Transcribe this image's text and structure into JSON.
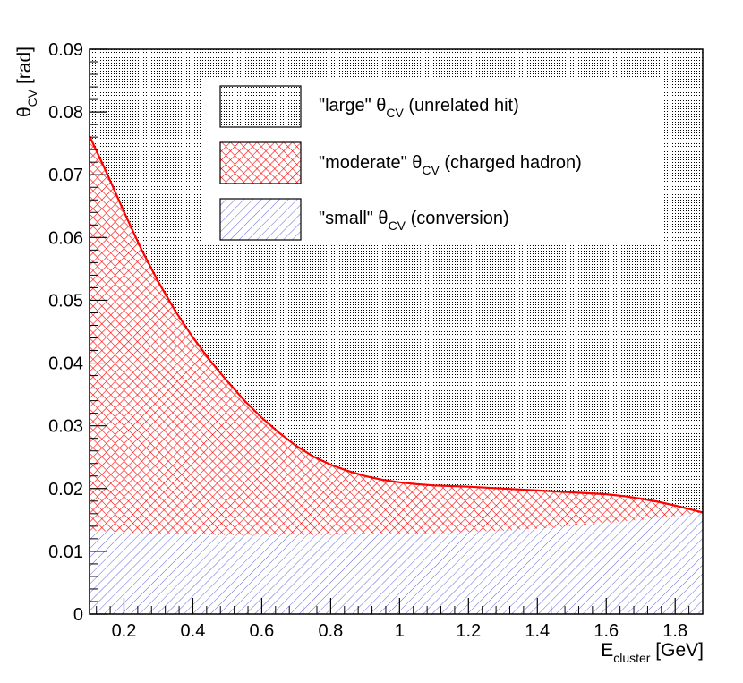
{
  "chart_data": {
    "type": "area",
    "x_range": [
      0.1,
      1.88
    ],
    "ylim": [
      0,
      0.09
    ],
    "x_ticks": [
      "0.2",
      "0.4",
      "0.6",
      "0.8",
      "1",
      "1.2",
      "1.4",
      "1.6",
      "1.8"
    ],
    "x_tick_values": [
      0.2,
      0.4,
      0.6,
      0.8,
      1.0,
      1.2,
      1.4,
      1.6,
      1.8
    ],
    "y_ticks": [
      "0",
      "0.01",
      "0.02",
      "0.03",
      "0.04",
      "0.05",
      "0.06",
      "0.07",
      "0.08",
      "0.09"
    ],
    "y_tick_values": [
      0,
      0.01,
      0.02,
      0.03,
      0.04,
      0.05,
      0.06,
      0.07,
      0.08,
      0.09
    ],
    "xlabel": {
      "main": "E",
      "sub": "cluster",
      "unit": " [GeV]"
    },
    "ylabel": {
      "main": "θ",
      "sub": "CV",
      "unit": " [rad]"
    },
    "series": [
      {
        "key": "large",
        "label": {
          "pre": "\"large\" θ",
          "sub": "CV",
          "post": " (unrelated hit)"
        },
        "color": "#000000",
        "pattern": "dots"
      },
      {
        "key": "moderate",
        "label": {
          "pre": "\"moderate\" θ",
          "sub": "CV",
          "post": " (charged hadron)"
        },
        "color": "#ff0000",
        "pattern": "crosshatch",
        "boundary_x": [
          0.1,
          0.15,
          0.2,
          0.25,
          0.3,
          0.35,
          0.4,
          0.45,
          0.5,
          0.55,
          0.6,
          0.65,
          0.7,
          0.75,
          0.8,
          0.85,
          0.9,
          0.95,
          1.0,
          1.05,
          1.1,
          1.15,
          1.2,
          1.3,
          1.4,
          1.5,
          1.6,
          1.65,
          1.7,
          1.75,
          1.8,
          1.85,
          1.88
        ],
        "boundary_y": [
          0.0762,
          0.0703,
          0.0641,
          0.0582,
          0.0529,
          0.0482,
          0.0441,
          0.0404,
          0.0371,
          0.034,
          0.0313,
          0.0289,
          0.0268,
          0.0251,
          0.0238,
          0.0228,
          0.022,
          0.0214,
          0.021,
          0.0207,
          0.0205,
          0.0204,
          0.0203,
          0.02,
          0.0197,
          0.0194,
          0.0191,
          0.0188,
          0.0184,
          0.0179,
          0.0173,
          0.0166,
          0.0162
        ]
      },
      {
        "key": "small",
        "label": {
          "pre": "\"small\" θ",
          "sub": "CV",
          "post": " (conversion)"
        },
        "color": "#3333cc",
        "pattern": "diagonal",
        "boundary_x": [
          0.1,
          0.2,
          0.3,
          0.4,
          0.5,
          0.6,
          0.7,
          0.8,
          0.9,
          1.0,
          1.1,
          1.2,
          1.3,
          1.4,
          1.5,
          1.6,
          1.7,
          1.8,
          1.88
        ],
        "boundary_y": [
          0.0133,
          0.013,
          0.0128,
          0.0127,
          0.0126,
          0.0126,
          0.0126,
          0.0126,
          0.0127,
          0.0128,
          0.0129,
          0.0131,
          0.0133,
          0.0136,
          0.014,
          0.0145,
          0.015,
          0.0156,
          0.0162
        ]
      }
    ],
    "legend_position": "top-right"
  }
}
